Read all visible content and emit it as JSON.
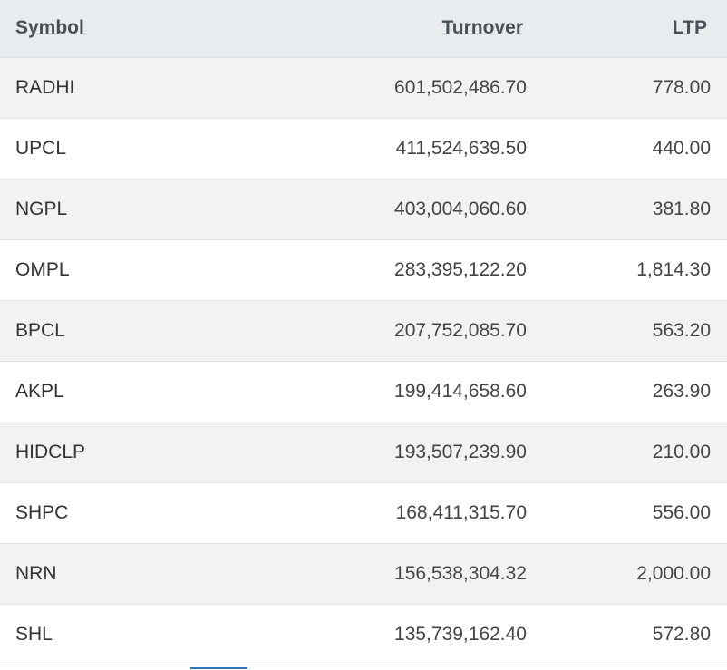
{
  "table": {
    "headers": {
      "symbol": "Symbol",
      "turnover": "Turnover",
      "ltp": "LTP"
    },
    "rows": [
      {
        "symbol": "RADHI",
        "turnover": "601,502,486.70",
        "ltp": "778.00"
      },
      {
        "symbol": "UPCL",
        "turnover": "411,524,639.50",
        "ltp": "440.00"
      },
      {
        "symbol": "NGPL",
        "turnover": "403,004,060.60",
        "ltp": "381.80"
      },
      {
        "symbol": "OMPL",
        "turnover": "283,395,122.20",
        "ltp": "1,814.30"
      },
      {
        "symbol": "BPCL",
        "turnover": "207,752,085.70",
        "ltp": "563.20"
      },
      {
        "symbol": "AKPL",
        "turnover": "199,414,658.60",
        "ltp": "263.90"
      },
      {
        "symbol": "HIDCLP",
        "turnover": "193,507,239.90",
        "ltp": "210.00"
      },
      {
        "symbol": "SHPC",
        "turnover": "168,411,315.70",
        "ltp": "556.00"
      },
      {
        "symbol": "NRN",
        "turnover": "156,538,304.32",
        "ltp": "2,000.00"
      },
      {
        "symbol": "SHL",
        "turnover": "135,739,162.40",
        "ltp": "572.80"
      }
    ]
  },
  "colors": {
    "header_bg": "#e9ecef",
    "stripe_bg": "#f2f2f2",
    "indicator": "#2f74b5"
  }
}
